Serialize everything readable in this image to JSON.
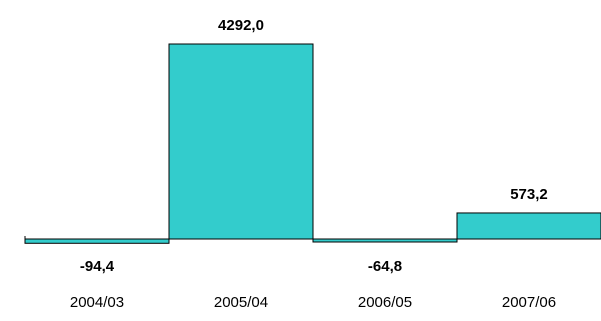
{
  "chart_data": {
    "type": "bar",
    "categories": [
      "2004/03",
      "2005/04",
      "2006/05",
      "2007/06"
    ],
    "values": [
      -94.4,
      4292.0,
      -64.8,
      573.2
    ],
    "data_labels": [
      "-94,4",
      "4292,0",
      "-64,8",
      "573,2"
    ],
    "title": "",
    "xlabel": "",
    "ylabel": "",
    "bar_color": "#33CCCC",
    "bar_edge_color": "#000000",
    "grid": false,
    "legend": "none"
  }
}
